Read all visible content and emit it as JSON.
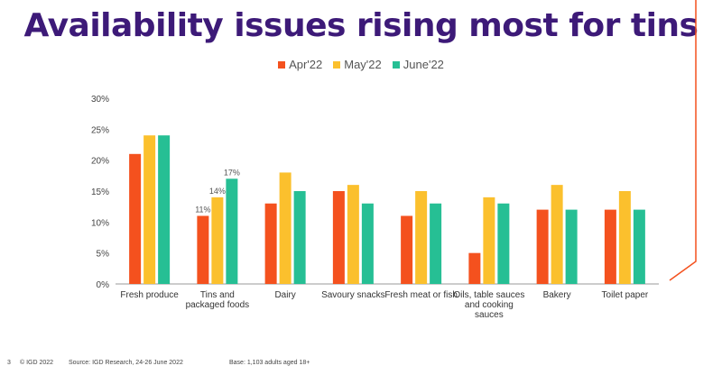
{
  "title": "Availability issues rising most for tins",
  "colors": {
    "title": "#3d1a78",
    "apr": "#f4511e",
    "may": "#fbc02d",
    "june": "#26bf94",
    "accent_line": "#f4511e"
  },
  "footer": {
    "page": "3",
    "copyright": "© IGD 2022",
    "source": "Source: IGD Research, 24-26 June 2022",
    "base": "Base: 1,103 adults aged 18+"
  },
  "chart_data": {
    "type": "bar",
    "categories": [
      [
        "Fresh produce"
      ],
      [
        "Tins and",
        "packaged foods"
      ],
      [
        "Dairy"
      ],
      [
        "Savoury snacks"
      ],
      [
        "Fresh meat or fish"
      ],
      [
        "Oils, table sauces",
        "and cooking",
        "sauces"
      ],
      [
        "Bakery"
      ],
      [
        "Toilet paper"
      ]
    ],
    "series": [
      {
        "name": "Apr'22",
        "color": "#f4511e",
        "values": [
          21,
          11,
          13,
          15,
          11,
          5,
          12,
          12
        ]
      },
      {
        "name": "May'22",
        "color": "#fbc02d",
        "values": [
          24,
          14,
          18,
          16,
          15,
          14,
          16,
          15
        ]
      },
      {
        "name": "June'22",
        "color": "#26bf94",
        "values": [
          24,
          17,
          15,
          13,
          13,
          13,
          12,
          12
        ]
      }
    ],
    "data_labels": [
      {
        "category_index": 1,
        "series_index": 0,
        "text": "11%"
      },
      {
        "category_index": 1,
        "series_index": 1,
        "text": "14%"
      },
      {
        "category_index": 1,
        "series_index": 2,
        "text": "17%"
      }
    ],
    "yticks": [
      "0%",
      "5%",
      "10%",
      "15%",
      "20%",
      "25%",
      "30%"
    ],
    "ylim": [
      0,
      30
    ],
    "legend_position": "top-center",
    "grid": false
  }
}
